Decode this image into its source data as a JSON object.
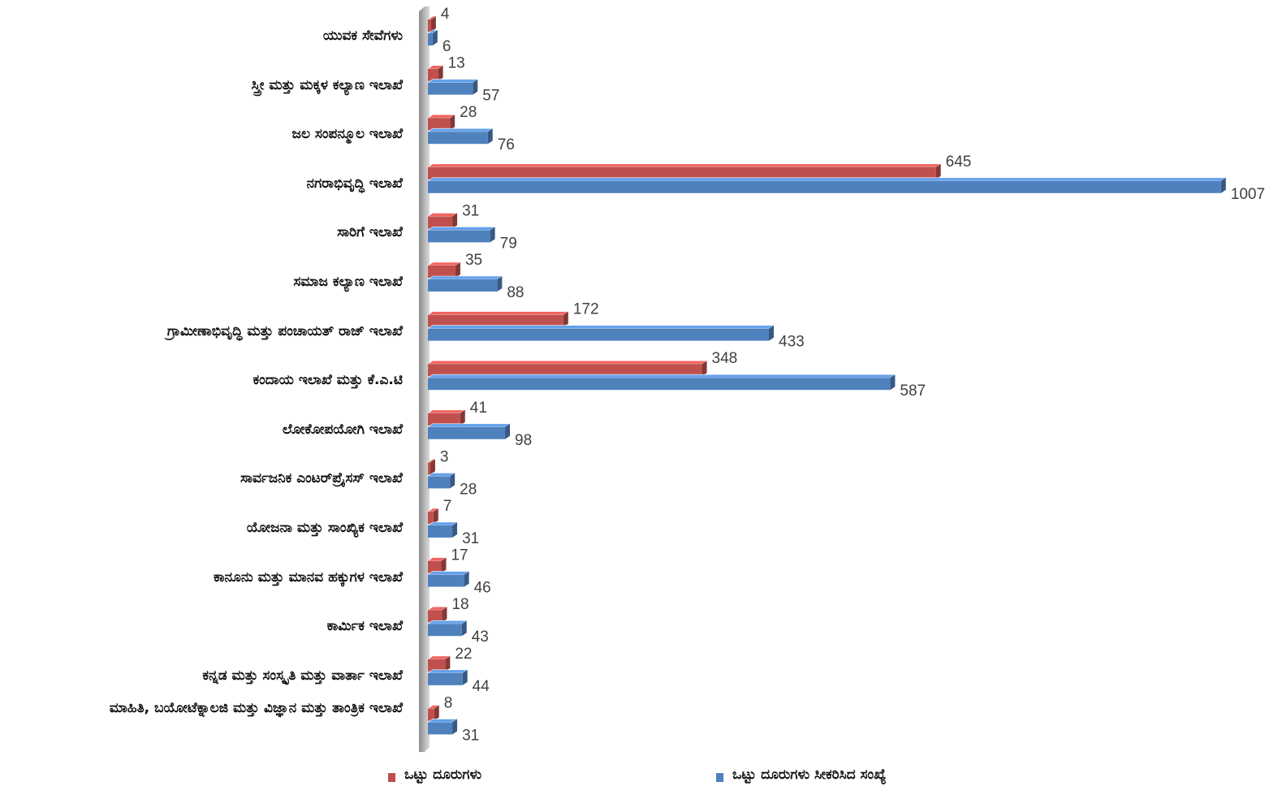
{
  "chart_data": {
    "type": "bar",
    "orientation": "horizontal",
    "categories": [
      "ಯುವಕ ಸೇವೆಗಳು",
      "ಸ್ತ್ರೀ ಮತ್ತು ಮಕ್ಕಳ ಕಲ್ಯಾಣ ಇಲಾಖೆ",
      "ಜಲ ಸಂಪನ್ಮೂಲ ಇಲಾಖೆ",
      "ನಗರಾಭಿವೃದ್ಧಿ ಇಲಾಖೆ",
      "ಸಾರಿಗೆ ಇಲಾಖೆ",
      "ಸಮಾಜ ಕಲ್ಯಾಣ ಇಲಾಖೆ",
      "ಗ್ರಾಮೀಣಾಭಿವೃದ್ಧಿ ಮತ್ತು ಪಂಚಾಯತ್ ರಾಜ್ ಇಲಾಖೆ",
      "ಕಂದಾಯ ಇಲಾಖೆ ಮತ್ತು ಕೆ.ಎ.ಟಿ",
      "ಲೋಕೋಪಯೋಗಿ ಇಲಾಖೆ",
      "ಸಾರ್ವಜನಿಕ ಎಂಟರ್‌ಪ್ರೈಸಸ್ ಇಲಾಖೆ",
      "ಯೋಜನಾ ಮತ್ತು ಸಾಂಖ್ಯಿಕ ಇಲಾಖೆ",
      "ಕಾನೂನು ಮತ್ತು ಮಾನವ ಹಕ್ಕುಗಳ ಇಲಾಖೆ",
      "ಕಾರ್ಮಿಕ ಇಲಾಖೆ",
      "ಕನ್ನಡ ಮತ್ತು ಸಂಸ್ಕೃತಿ ಮತ್ತು ವಾರ್ತಾ ಇಲಾಖೆ",
      "ಮಾಹಿತಿ, ಬಯೋಟೆಕ್ನಾಲಜಿ ಮತ್ತು ವಿಜ್ಞಾನ ಮತ್ತು ತಾಂತ್ರಿಕ ಇಲಾಖೆ"
    ],
    "series": [
      {
        "name": "ಒಟ್ಟು ದೂರುಗಳು",
        "color": "#c0504d",
        "values": [
          4,
          13,
          28,
          645,
          31,
          35,
          172,
          348,
          41,
          3,
          7,
          17,
          18,
          22,
          8
        ]
      },
      {
        "name": "ಒಟ್ಟು ದೂರುಗಳು ಸೀಕರಿಸಿದ ಸಂಖ್ಯೆ",
        "color": "#4f81bd",
        "values": [
          6,
          57,
          76,
          1007,
          79,
          88,
          433,
          587,
          98,
          28,
          31,
          46,
          43,
          44,
          31
        ]
      }
    ],
    "legend": "bottom"
  }
}
